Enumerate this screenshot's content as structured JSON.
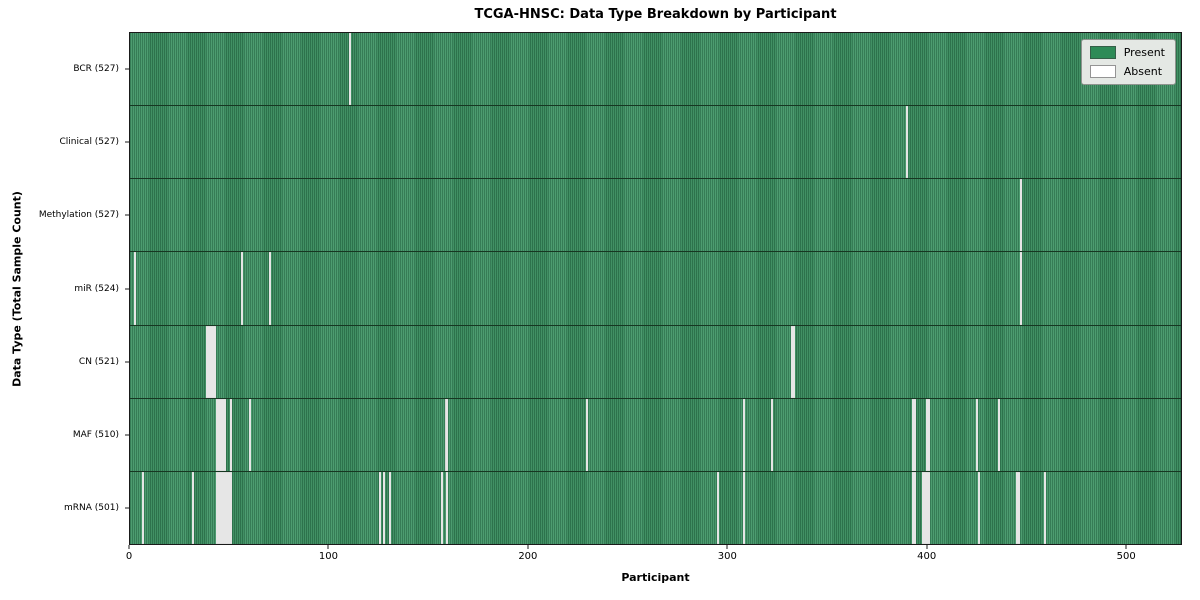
{
  "chart_data": {
    "type": "heatmap",
    "title": "TCGA-HNSC: Data Type Breakdown by Participant",
    "xlabel": "Participant",
    "ylabel": "Data Type (Total Sample Count)",
    "x_range": [
      0,
      528
    ],
    "x_ticks": [
      0,
      100,
      200,
      300,
      400,
      500
    ],
    "n_participants": 528,
    "grid": false,
    "legend_position": "upper right",
    "colors": {
      "present": "#2e8b57",
      "absent": "#ffffff"
    },
    "legend_items": [
      {
        "label": "Present",
        "color": "#2e8b57"
      },
      {
        "label": "Absent",
        "color": "#ffffff"
      }
    ],
    "rows": [
      {
        "label": "BCR (527)",
        "data_type": "BCR",
        "total_samples": 527,
        "absent_participants": [
          110
        ]
      },
      {
        "label": "Clinical (527)",
        "data_type": "Clinical",
        "total_samples": 527,
        "absent_participants": [
          390
        ]
      },
      {
        "label": "Methylation (527)",
        "data_type": "Methylation",
        "total_samples": 527,
        "absent_participants": [
          447
        ]
      },
      {
        "label": "miR (524)",
        "data_type": "miR",
        "total_samples": 524,
        "absent_participants": [
          2,
          56,
          70,
          447
        ]
      },
      {
        "label": "CN (521)",
        "data_type": "CN",
        "total_samples": 521,
        "absent_participants": [
          38,
          39,
          40,
          41,
          42,
          332,
          333
        ]
      },
      {
        "label": "MAF (510)",
        "data_type": "MAF",
        "total_samples": 510,
        "absent_participants": [
          43,
          44,
          45,
          46,
          47,
          50,
          60,
          158,
          159,
          229,
          308,
          322,
          393,
          394,
          400,
          401,
          425,
          436
        ]
      },
      {
        "label": "mRNA (501)",
        "data_type": "mRNA",
        "total_samples": 501,
        "absent_participants": [
          6,
          31,
          43,
          44,
          45,
          46,
          47,
          48,
          49,
          50,
          125,
          127,
          130,
          156,
          159,
          295,
          308,
          393,
          394,
          398,
          399,
          400,
          401,
          426,
          445,
          446,
          459
        ]
      }
    ]
  }
}
